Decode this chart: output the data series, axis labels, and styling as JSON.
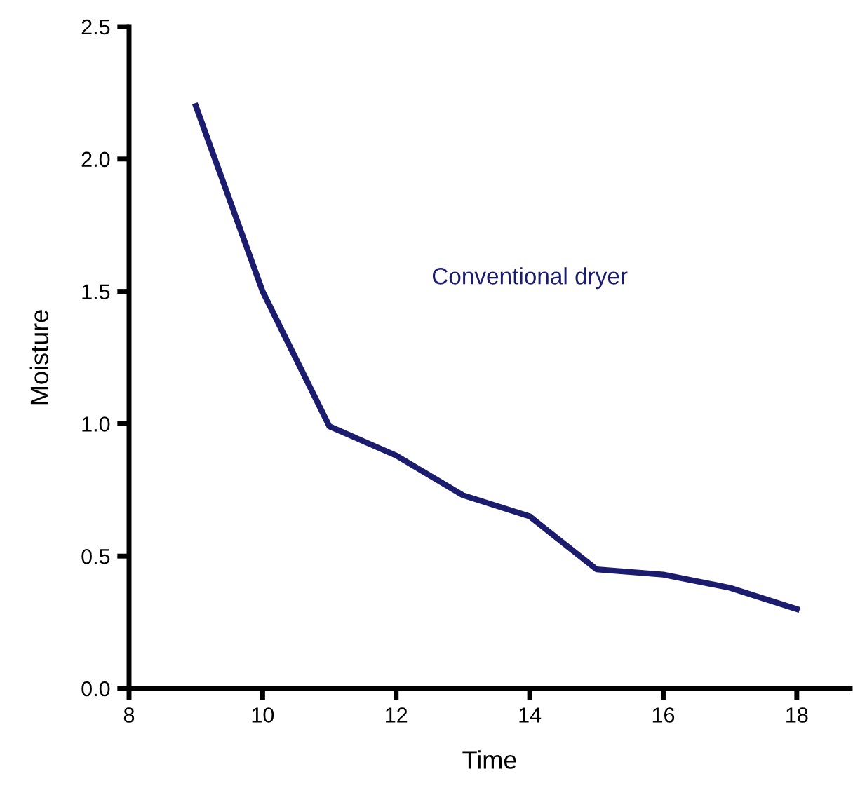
{
  "chart_data": {
    "type": "line",
    "xlabel": "Time",
    "ylabel": "Moisture",
    "x": [
      9,
      10,
      11,
      12,
      13,
      14,
      15,
      16,
      17,
      18
    ],
    "series": [
      {
        "name": "Conventional dryer",
        "color": "#1c1c6e",
        "values": [
          2.2,
          1.5,
          0.99,
          0.88,
          0.73,
          0.65,
          0.45,
          0.43,
          0.38,
          0.3
        ]
      }
    ],
    "xlim": [
      8,
      18.8
    ],
    "xticks": [
      8,
      10,
      12,
      14,
      16,
      18
    ],
    "ylim": [
      0,
      2.5
    ],
    "yticks": [
      {
        "value": 0,
        "label": "0.0"
      },
      0.5,
      {
        "value": 1,
        "label": "1.0"
      },
      1.5,
      {
        "value": 2,
        "label": "2.0"
      },
      2.5
    ],
    "grid": false,
    "legend": false,
    "marker": "none",
    "line_style": "solid"
  }
}
